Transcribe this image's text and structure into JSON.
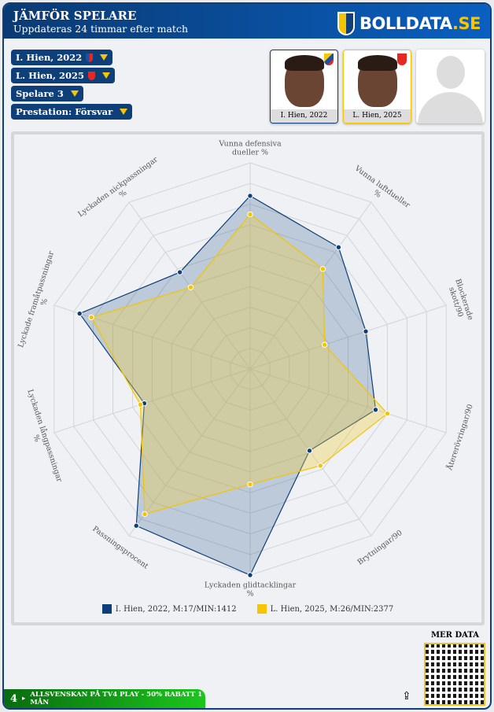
{
  "header": {
    "title": "JÄMFÖR SPELARE",
    "subtitle": "Uppdateras 24 timmar efter match",
    "logo_main": "BOLLDATA",
    "logo_suffix": ".SE"
  },
  "selectors": [
    {
      "label": "I. Hien, 2022",
      "crest_color": "#1b4fa0"
    },
    {
      "label": "L. Hien, 2025",
      "crest_color": "#e52821"
    },
    {
      "label": "Spelare 3"
    },
    {
      "label": "Prestation: Försvar"
    }
  ],
  "player_cards": [
    {
      "caption": "I. Hien, 2022",
      "border": "#0e3f78"
    },
    {
      "caption": "L. Hien, 2025",
      "border": "#f7c600"
    },
    {
      "caption": ""
    }
  ],
  "chart_data": {
    "type": "radar",
    "axes": [
      "Vunna defensiva dueller %",
      "Vunna luftdueller %",
      "Blockerade skott/90",
      "Återerövringar/90",
      "Brytningar/90",
      "Lyckaden glidtacklingar %",
      "Passningsprocent",
      "Lyckaden långpassningar %",
      "Lyckade framåtpassningar %",
      "Lyckaden nickpassningar %"
    ],
    "range": [
      0,
      100
    ],
    "grid": true,
    "legend_placement": "bottom",
    "series": [
      {
        "name": "I. Hien, 2022, M:17/MIN:1412",
        "color": "#0e3f78",
        "values": [
          84,
          73,
          59,
          64,
          49,
          100,
          94,
          54,
          87,
          58
        ]
      },
      {
        "name": "L. Hien, 2025, M:26/MIN:2377",
        "color": "#f2c500",
        "values": [
          75,
          60,
          38,
          70,
          58,
          56,
          87,
          56,
          81,
          49
        ]
      }
    ]
  },
  "footer": {
    "mer_data": "MER DATA",
    "promo": "ALLSVENSKAN PÅ TV4 PLAY - 50% RABATT 1 MÅN",
    "promo_logo": "4"
  }
}
